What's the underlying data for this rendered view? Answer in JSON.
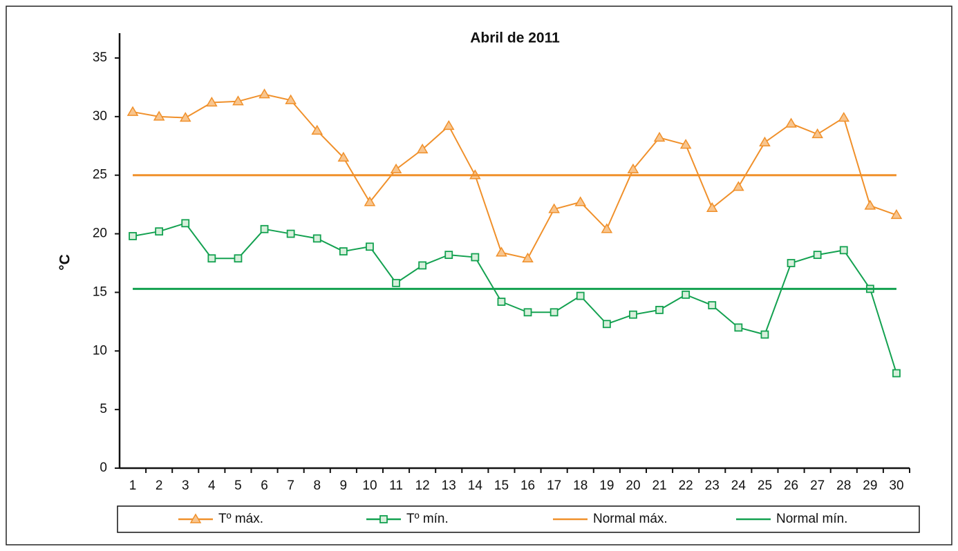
{
  "chart_data": {
    "type": "line",
    "title": "Abril de 2011",
    "y_label": "°C",
    "categories": [
      "1",
      "2",
      "3",
      "4",
      "5",
      "6",
      "7",
      "8",
      "9",
      "10",
      "11",
      "12",
      "13",
      "14",
      "15",
      "16",
      "17",
      "18",
      "19",
      "20",
      "21",
      "22",
      "23",
      "24",
      "25",
      "26",
      "27",
      "28",
      "29",
      "30"
    ],
    "series": [
      {
        "name": "Tº máx.",
        "color": "#f0902a",
        "marker": "triangle",
        "values": [
          30.4,
          30.0,
          29.9,
          31.2,
          31.3,
          31.9,
          31.4,
          28.8,
          26.5,
          22.7,
          25.5,
          27.2,
          29.2,
          25.0,
          18.4,
          17.9,
          22.1,
          22.7,
          20.4,
          25.5,
          28.2,
          27.6,
          22.2,
          24.0,
          27.8,
          29.4,
          28.5,
          29.9,
          22.4,
          21.6
        ]
      },
      {
        "name": "Tº mín.",
        "color": "#13a150",
        "marker": "square",
        "values": [
          19.8,
          20.2,
          20.9,
          17.9,
          17.9,
          20.4,
          20.0,
          19.6,
          18.5,
          18.9,
          15.8,
          17.3,
          18.2,
          18.0,
          14.2,
          13.3,
          13.3,
          14.7,
          12.3,
          13.1,
          13.5,
          14.8,
          13.9,
          12.0,
          11.4,
          17.5,
          18.2,
          18.6,
          15.3,
          8.1
        ]
      },
      {
        "name": "Normal máx.",
        "color": "#f0902a",
        "value": 25.0
      },
      {
        "name": "Normal mín.",
        "color": "#13a150",
        "value": 15.3
      }
    ],
    "ylim": [
      0,
      35
    ],
    "yticks": [
      0,
      5,
      10,
      15,
      20,
      25,
      30,
      35
    ]
  }
}
